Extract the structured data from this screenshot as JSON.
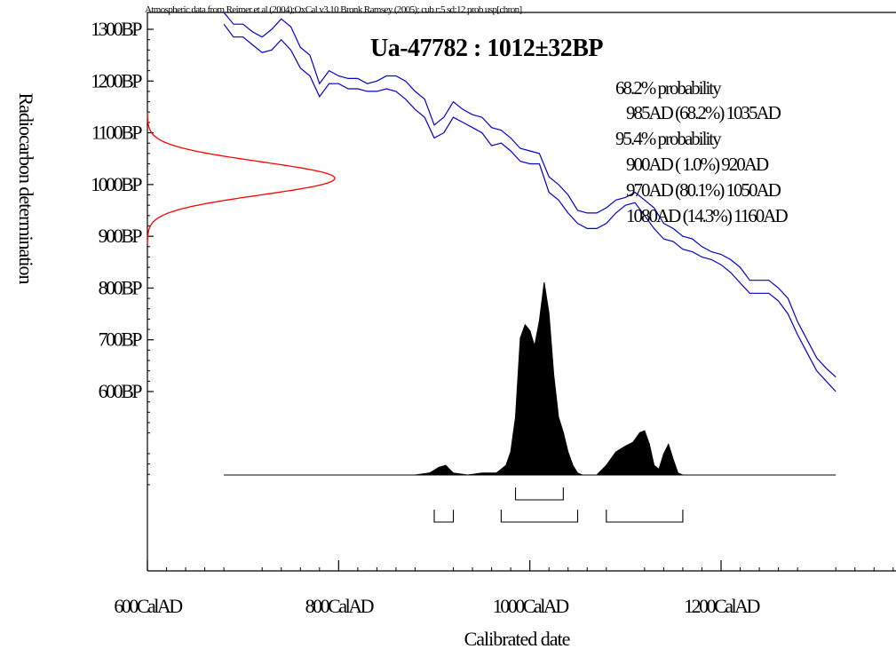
{
  "chart_data": {
    "type": "area",
    "header_note": "Atmospheric data from Reimer et al (2004);OxCal v3.10 Bronk Ramsey (2005); cub r:5 sd:12 prob usp[chron]",
    "title": "Ua-47782 : 1012±32BP",
    "xlabel": "Calibrated date",
    "ylabel": "Radiocarbon determination",
    "xlim": [
      600,
      1400
    ],
    "ylim_bp": [
      375,
      1320
    ],
    "x_ticks": [
      {
        "value": 600,
        "label": "600CalAD"
      },
      {
        "value": 800,
        "label": "800CalAD"
      },
      {
        "value": 1000,
        "label": "1000CalAD"
      },
      {
        "value": 1200,
        "label": "1200CalAD"
      }
    ],
    "y_ticks": [
      {
        "value": 1300,
        "label": "1300BP"
      },
      {
        "value": 1200,
        "label": "1200BP"
      },
      {
        "value": 1100,
        "label": "1100BP"
      },
      {
        "value": 1000,
        "label": "1000BP"
      },
      {
        "value": 900,
        "label": "900BP"
      },
      {
        "value": 800,
        "label": "800BP"
      },
      {
        "value": 700,
        "label": "700BP"
      },
      {
        "value": 600,
        "label": "600BP"
      }
    ],
    "radiocarbon_determination": {
      "mean_bp": 1012,
      "sd": 32,
      "color": "#ff0000"
    },
    "calibration_curve": {
      "color": "#0000cc",
      "x": [
        680,
        690,
        700,
        710,
        720,
        730,
        740,
        750,
        760,
        770,
        780,
        790,
        800,
        810,
        820,
        830,
        840,
        850,
        860,
        870,
        880,
        890,
        900,
        910,
        920,
        930,
        940,
        950,
        960,
        970,
        980,
        990,
        1000,
        1010,
        1020,
        1030,
        1040,
        1050,
        1060,
        1070,
        1080,
        1090,
        1100,
        1110,
        1120,
        1130,
        1140,
        1150,
        1160,
        1170,
        1180,
        1190,
        1200,
        1210,
        1220,
        1230,
        1240,
        1250,
        1260,
        1270,
        1280,
        1290,
        1300,
        1310,
        1320
      ],
      "upper_bp": [
        1340,
        1310,
        1310,
        1295,
        1285,
        1300,
        1320,
        1305,
        1265,
        1250,
        1195,
        1220,
        1210,
        1205,
        1205,
        1195,
        1200,
        1210,
        1210,
        1200,
        1180,
        1165,
        1115,
        1130,
        1160,
        1145,
        1135,
        1130,
        1110,
        1105,
        1090,
        1070,
        1065,
        1060,
        1015,
        1000,
        980,
        950,
        945,
        945,
        955,
        970,
        975,
        985,
        970,
        955,
        925,
        915,
        900,
        895,
        880,
        870,
        865,
        855,
        840,
        815,
        815,
        815,
        800,
        780,
        735,
        700,
        665,
        645,
        628
      ],
      "lower_bp": [
        1310,
        1285,
        1285,
        1270,
        1255,
        1260,
        1280,
        1260,
        1225,
        1210,
        1170,
        1195,
        1195,
        1185,
        1185,
        1180,
        1180,
        1185,
        1180,
        1165,
        1145,
        1130,
        1090,
        1100,
        1130,
        1120,
        1110,
        1100,
        1075,
        1080,
        1065,
        1045,
        1040,
        1040,
        985,
        970,
        945,
        925,
        915,
        915,
        925,
        945,
        960,
        965,
        940,
        915,
        895,
        890,
        875,
        870,
        860,
        855,
        845,
        830,
        810,
        790,
        790,
        790,
        775,
        750,
        710,
        675,
        640,
        620,
        600
      ]
    },
    "probability_distribution": {
      "color": "#000000",
      "x": [
        680,
        880,
        895,
        905,
        912,
        920,
        935,
        950,
        965,
        975,
        980,
        985,
        990,
        995,
        1000,
        1005,
        1010,
        1015,
        1020,
        1025,
        1030,
        1035,
        1040,
        1045,
        1050,
        1055,
        1060,
        1070,
        1080,
        1090,
        1100,
        1108,
        1115,
        1120,
        1125,
        1130,
        1135,
        1140,
        1145,
        1150,
        1155,
        1160,
        1320
      ],
      "density": [
        0,
        0,
        0.01,
        0.04,
        0.05,
        0.01,
        0,
        0.01,
        0.01,
        0.05,
        0.12,
        0.3,
        0.71,
        0.78,
        0.75,
        0.67,
        0.8,
        1.0,
        0.84,
        0.52,
        0.3,
        0.22,
        0.12,
        0.05,
        0.01,
        0,
        0,
        0,
        0.05,
        0.12,
        0.15,
        0.17,
        0.22,
        0.23,
        0.16,
        0.05,
        0.03,
        0.11,
        0.16,
        0.08,
        0.01,
        0,
        0
      ]
    },
    "ranges_68": [
      [
        985,
        1035
      ]
    ],
    "ranges_95": [
      [
        900,
        920
      ],
      [
        970,
        1050
      ],
      [
        1080,
        1160
      ]
    ],
    "probability_summary": [
      "68.2% probability",
      "985AD (68.2%) 1035AD",
      "95.4% probability",
      "900AD ( 1.0%) 920AD",
      "970AD (80.1%) 1050AD",
      "1080AD (14.3%) 1160AD"
    ]
  }
}
